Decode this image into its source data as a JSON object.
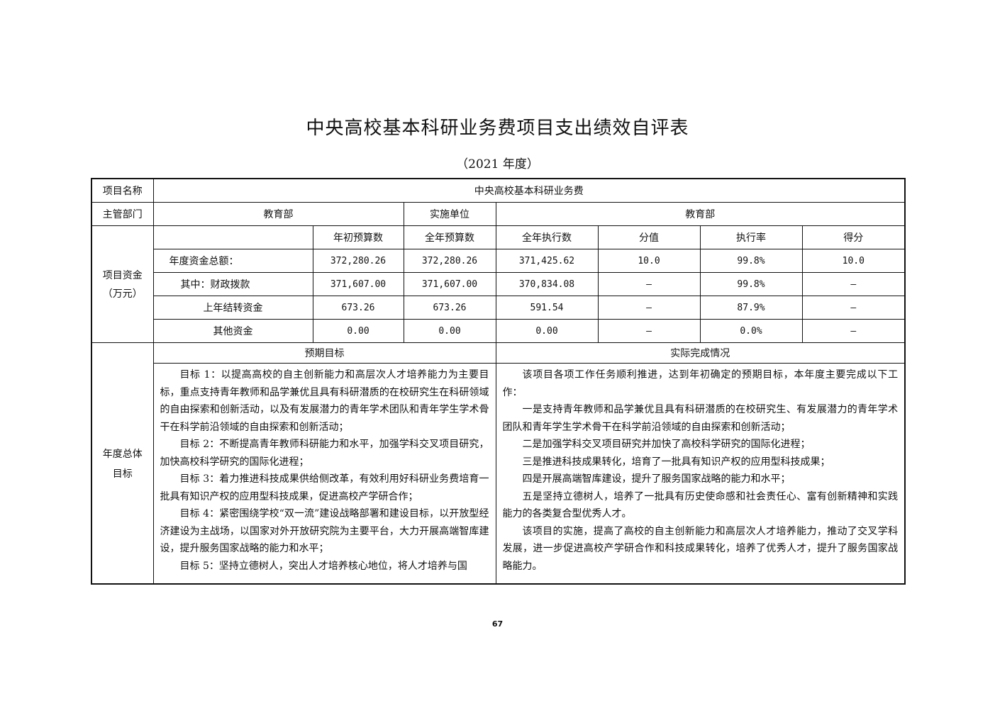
{
  "title": "中央高校基本科研业务费项目支出绩效自评表",
  "subtitle": "（2021 年度）",
  "project_name_label": "项目名称",
  "project_name": "中央高校基本科研业务费",
  "dept_label": "主管部门",
  "dept": "教育部",
  "impl_label": "实施单位",
  "impl": "教育部",
  "funds_label": "项目资金",
  "funds_unit": "（万元）",
  "fund_headers": [
    "年初预算数",
    "全年预算数",
    "全年执行数",
    "分值",
    "执行率",
    "得分"
  ],
  "fund_rows": [
    {
      "label": "年度资金总额：",
      "values": [
        "372,280.26",
        "372,280.26",
        "371,425.62",
        "10.0",
        "99.8%",
        "10.0"
      ]
    },
    {
      "label": "其中：财政拨款",
      "values": [
        "371,607.00",
        "371,607.00",
        "370,834.08",
        "—",
        "99.8%",
        "—"
      ]
    },
    {
      "label": "上年结转资金",
      "values": [
        "673.26",
        "673.26",
        "591.54",
        "—",
        "87.9%",
        "—"
      ]
    },
    {
      "label": "其他资金",
      "values": [
        "0.00",
        "0.00",
        "0.00",
        "—",
        "0.0%",
        "—"
      ]
    }
  ],
  "goals_label_1": "年度总体",
  "goals_label_2": "目标",
  "expected_header": "预期目标",
  "actual_header": "实际完成情况",
  "expected": [
    "目标 1：以提高高校的自主创新能力和高层次人才培养能力为主要目标，重点支持青年教师和品学兼优且具有科研潜质的在校研究生在科研领域的自由探索和创新活动，以及有发展潜力的青年学术团队和青年学生学术骨干在科学前沿领域的自由探索和创新活动；",
    "目标 2：不断提高青年教师科研能力和水平，加强学科交叉项目研究，加快高校科学研究的国际化进程；",
    "目标 3：着力推进科技成果供给侧改革，有效利用好科研业务费培育一批具有知识产权的应用型科技成果，促进高校产学研合作；",
    "目标 4：紧密围绕学校“双一流”建设战略部署和建设目标，以开放型经济建设为主战场，以国家对外开放研究院为主要平台，大力开展高端智库建设，提升服务国家战略的能力和水平；",
    "目标 5：坚持立德树人，突出人才培养核心地位，将人才培养与国"
  ],
  "actual": [
    "该项目各项工作任务顺利推进，达到年初确定的预期目标，本年度主要完成以下工作：",
    "一是支持青年教师和品学兼优且具有科研潜质的在校研究生、有发展潜力的青年学术团队和青年学生学术骨干在科学前沿领域的自由探索和创新活动；",
    "二是加强学科交叉项目研究并加快了高校科学研究的国际化进程；",
    "三是推进科技成果转化，培育了一批具有知识产权的应用型科技成果；",
    "四是开展高端智库建设，提升了服务国家战略的能力和水平；",
    "五是坚持立德树人，培养了一批具有历史使命感和社会责任心、富有创新精神和实践能力的各类复合型优秀人才。",
    "该项目的实施，提高了高校的自主创新能力和高层次人才培养能力，推动了交叉学科发展，进一步促进高校产学研合作和科技成果转化，培养了优秀人才，提升了服务国家战略能力。"
  ],
  "page_number": "67"
}
